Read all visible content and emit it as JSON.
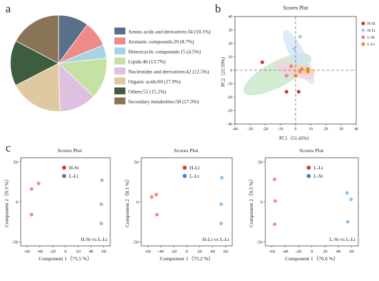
{
  "panel_labels": {
    "a": "a",
    "b": "b",
    "c": "c"
  },
  "colors": {
    "h_st": "#d62b2b",
    "h_lt": "#a7c7ea",
    "l_st": "#e37fa0",
    "l_lt": "#eb8a1b",
    "c_red": "#ef8b8b",
    "c_blue": "#8ec0ea",
    "c_legend_red": "#d83a3a",
    "c_legend_blue": "#3f82c8"
  },
  "chart_data": [
    {
      "type": "pie",
      "categories": [
        "Amino acids and derivatives:34 (10.1%)",
        "Aromatic compounds:29 (8.7%)",
        "Heterocyclic compounds:15 (4.5%)",
        "Lipids:46 (13.7%)",
        "Nucleotides and derivatives:42 (12.5%)",
        "Organic acids:60 (17.9%)",
        "Others:51 (15.2%)",
        "Secondary metabolites:58 (17.3%)"
      ],
      "values": [
        34,
        29,
        15,
        46,
        42,
        60,
        51,
        58
      ],
      "colors": [
        "#5a6f89",
        "#ee8a87",
        "#a6d4e3",
        "#c5e1a4",
        "#dfc0e1",
        "#e0c9a1",
        "#3e5d3f",
        "#8a7458"
      ]
    },
    {
      "type": "scatter",
      "title": "Scores Plot",
      "xlabel": "PC1（51.41%）",
      "ylabel": "PC2（21.59%）",
      "xlim": [
        -40,
        40
      ],
      "ylim": [
        -40,
        40
      ],
      "xticks": [
        -40,
        -30,
        -20,
        -10,
        0,
        10,
        20,
        30,
        40
      ],
      "yticks": [
        -40,
        -30,
        -20,
        -10,
        0,
        10,
        20,
        30,
        40
      ],
      "legend": [
        "H-St",
        "H-Lt",
        "L-St",
        "L-Lt"
      ],
      "legend_position": "top-right",
      "series": [
        {
          "name": "H-St",
          "x": [
            -22,
            -6,
            2
          ],
          "y": [
            6,
            -16,
            -16
          ]
        },
        {
          "name": "H-Lt",
          "x": [
            -1,
            3
          ],
          "y": [
            16,
            25
          ]
        },
        {
          "name": "L-St",
          "x": [
            -6,
            -3,
            3
          ],
          "y": [
            -4,
            3,
            -1
          ]
        },
        {
          "name": "L-Lt",
          "x": [
            0,
            4,
            8,
            8
          ],
          "y": [
            -4,
            1,
            1,
            -1
          ]
        }
      ]
    },
    {
      "type": "scatter",
      "title": "Scores Plot",
      "xlabel": "Component 1（75.5 %）",
      "ylabel": "Component 2（9.3 %）",
      "xlim": [
        -70,
        70
      ],
      "ylim": [
        -55,
        55
      ],
      "xticks": [
        -60,
        -40,
        -20,
        0,
        20,
        40,
        60
      ],
      "yticks": [
        -50,
        0,
        50
      ],
      "legend": [
        "H-St",
        "L-Lt"
      ],
      "annotation": "H-St vs L-Lt",
      "series": [
        {
          "name": "H-St",
          "x": [
            -53,
            -42,
            -53
          ],
          "y": [
            16,
            23,
            -16
          ]
        },
        {
          "name": "L-Lt",
          "x": [
            57,
            56,
            56
          ],
          "y": [
            27,
            -3,
            -27
          ]
        }
      ]
    },
    {
      "type": "scatter",
      "title": "Scores Plot",
      "xlabel": "Component 1（75.2 %）",
      "ylabel": "Component 2（8.1 %）",
      "xlim": [
        -70,
        70
      ],
      "ylim": [
        -55,
        55
      ],
      "xticks": [
        -60,
        -40,
        -20,
        0,
        20,
        40,
        60
      ],
      "yticks": [
        -50,
        0,
        50
      ],
      "legend": [
        "H-Lt",
        "L-Lt"
      ],
      "annotation": "H-Lt vs L-Lt",
      "series": [
        {
          "name": "H-Lt",
          "x": [
            -54,
            -47,
            -46
          ],
          "y": [
            6,
            9,
            -16
          ]
        },
        {
          "name": "L-Lt",
          "x": [
            54,
            53,
            53
          ],
          "y": [
            30,
            -3,
            -27
          ]
        }
      ]
    },
    {
      "type": "scatter",
      "title": "Scores Plot",
      "xlabel": "Component 1（76.6 %）",
      "ylabel": "Component 2（9.5 %）",
      "xlim": [
        -70,
        70
      ],
      "ylim": [
        -55,
        55
      ],
      "xticks": [
        -60,
        -40,
        -20,
        0,
        20,
        40,
        60
      ],
      "yticks": [
        -50,
        0,
        50
      ],
      "legend": [
        "L-Lt",
        "L-St"
      ],
      "annotation": "L-St vs L-Lt",
      "series": [
        {
          "name": "L-Lt",
          "x": [
            -56,
            -55,
            -56
          ],
          "y": [
            28,
            1,
            -28
          ]
        },
        {
          "name": "L-St",
          "x": [
            53,
            59,
            54
          ],
          "y": [
            11,
            3,
            -25
          ]
        }
      ]
    }
  ]
}
